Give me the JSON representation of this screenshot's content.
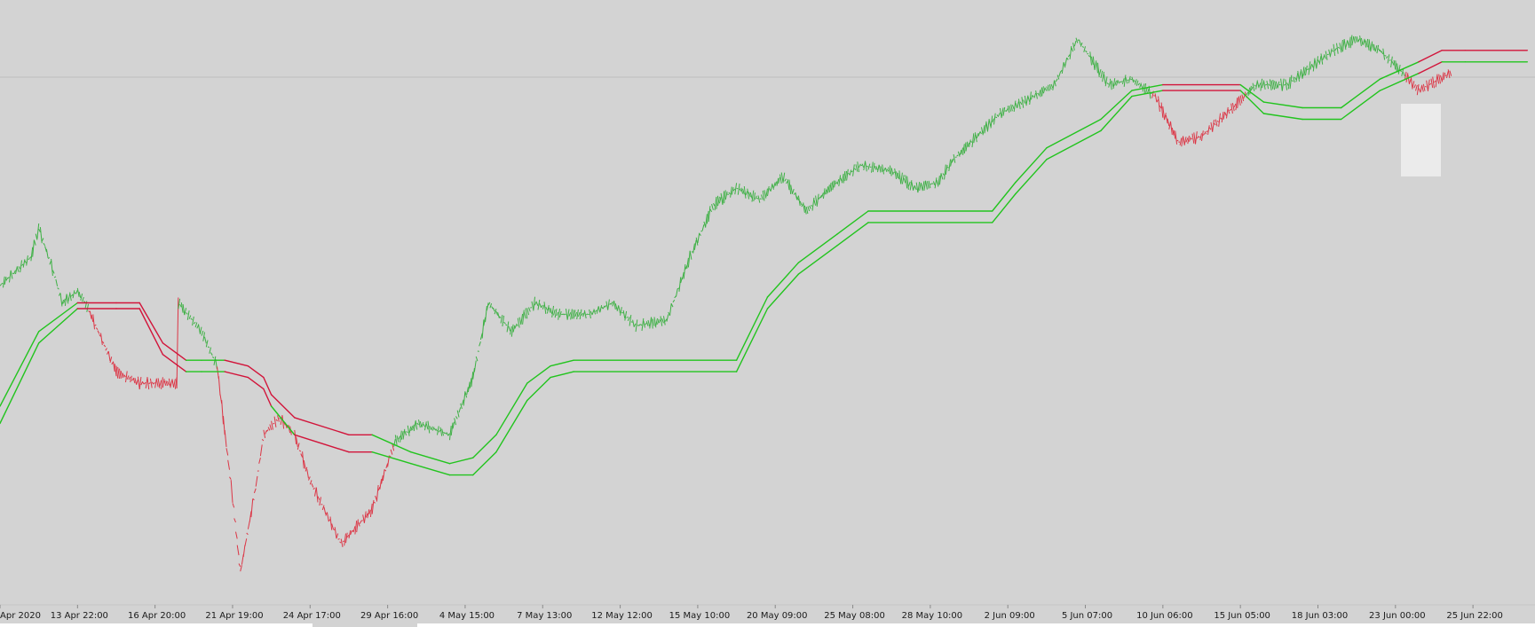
{
  "chart_data": {
    "type": "line",
    "title": "",
    "xlabel": "",
    "ylabel": "",
    "grid": false,
    "legend": "none",
    "x_ticks": [
      "Apr 2020",
      "13 Apr 22:00",
      "16 Apr 20:00",
      "21 Apr 19:00",
      "24 Apr 17:00",
      "29 Apr 16:00",
      "4 May 15:00",
      "7 May 13:00",
      "12 May 12:00",
      "15 May 10:00",
      "20 May 09:00",
      "25 May 08:00",
      "28 May 10:00",
      "2 Jun 09:00",
      "5 Jun 07:00",
      "10 Jun 06:00",
      "15 Jun 05:00",
      "18 Jun 03:00",
      "23 Jun 00:00",
      "25 Jun 22:00"
    ],
    "x_range": [
      0,
      19.8
    ],
    "y_range": [
      0,
      100
    ],
    "colors": {
      "up": "#3cb043",
      "down": "#dc3545",
      "band_up": "#22c41e",
      "band_down": "#d2143a",
      "background": "#d3d3d3"
    },
    "series": [
      {
        "name": "",
        "role": "price",
        "points": [
          [
            0,
            53
          ],
          [
            0.4,
            58
          ],
          [
            0.5,
            63
          ],
          [
            0.7,
            55
          ],
          [
            0.8,
            50
          ],
          [
            1.0,
            52
          ],
          [
            1.1,
            50
          ],
          [
            1.3,
            44
          ],
          [
            1.5,
            38
          ],
          [
            1.8,
            36
          ],
          [
            2.1,
            36
          ],
          [
            2.3,
            36
          ],
          [
            2.3,
            50
          ],
          [
            2.6,
            45
          ],
          [
            2.8,
            39
          ],
          [
            3.0,
            16
          ],
          [
            3.1,
            3
          ],
          [
            3.3,
            18
          ],
          [
            3.4,
            27
          ],
          [
            3.6,
            30
          ],
          [
            3.8,
            27
          ],
          [
            4.0,
            19
          ],
          [
            4.4,
            8
          ],
          [
            4.8,
            14
          ],
          [
            5.1,
            26
          ],
          [
            5.4,
            29
          ],
          [
            5.8,
            27
          ],
          [
            6.1,
            37
          ],
          [
            6.3,
            50
          ],
          [
            6.6,
            45
          ],
          [
            6.9,
            50
          ],
          [
            7.2,
            48
          ],
          [
            7.6,
            48
          ],
          [
            7.9,
            50
          ],
          [
            8.2,
            46
          ],
          [
            8.6,
            47
          ],
          [
            8.9,
            58
          ],
          [
            9.2,
            67
          ],
          [
            9.5,
            70
          ],
          [
            9.8,
            68
          ],
          [
            10.1,
            72
          ],
          [
            10.4,
            66
          ],
          [
            10.7,
            70
          ],
          [
            11.1,
            74
          ],
          [
            11.5,
            73
          ],
          [
            11.8,
            70
          ],
          [
            12.1,
            71
          ],
          [
            12.3,
            75
          ],
          [
            12.6,
            79
          ],
          [
            12.9,
            83
          ],
          [
            13.2,
            85
          ],
          [
            13.6,
            88
          ],
          [
            13.9,
            96
          ],
          [
            14.3,
            88
          ],
          [
            14.6,
            89
          ],
          [
            14.9,
            86
          ],
          [
            15.2,
            78
          ],
          [
            15.5,
            79
          ],
          [
            15.9,
            84
          ],
          [
            16.2,
            88
          ],
          [
            16.6,
            88
          ],
          [
            16.9,
            91
          ],
          [
            17.2,
            94
          ],
          [
            17.5,
            96
          ],
          [
            17.8,
            94
          ],
          [
            18.1,
            90
          ],
          [
            18.3,
            87
          ],
          [
            18.7,
            90
          ]
        ]
      },
      {
        "name": "",
        "role": "band-upper",
        "points": [
          [
            0,
            32
          ],
          [
            0.5,
            45
          ],
          [
            1,
            50
          ],
          [
            1.5,
            50
          ],
          [
            1.8,
            50
          ],
          [
            2.1,
            43
          ],
          [
            2.4,
            40
          ],
          [
            2.6,
            40
          ],
          [
            2.9,
            40
          ],
          [
            3.2,
            39
          ],
          [
            3.4,
            37
          ],
          [
            3.5,
            34
          ],
          [
            3.8,
            30
          ],
          [
            4.5,
            27
          ],
          [
            4.8,
            27
          ],
          [
            5.3,
            24
          ],
          [
            5.8,
            22
          ],
          [
            6.1,
            23
          ],
          [
            6.4,
            27
          ],
          [
            6.8,
            36
          ],
          [
            7.1,
            39
          ],
          [
            7.4,
            40
          ],
          [
            9.5,
            40
          ],
          [
            9.9,
            51
          ],
          [
            10.3,
            57
          ],
          [
            10.8,
            62
          ],
          [
            11.2,
            66
          ],
          [
            12.8,
            66
          ],
          [
            13.1,
            71
          ],
          [
            13.5,
            77
          ],
          [
            14.2,
            82
          ],
          [
            14.6,
            87
          ],
          [
            15.0,
            88
          ],
          [
            16.0,
            88
          ],
          [
            16.3,
            85
          ],
          [
            16.8,
            84
          ],
          [
            17.3,
            84
          ],
          [
            17.8,
            89
          ],
          [
            18.3,
            92
          ],
          [
            18.6,
            94
          ],
          [
            18.9,
            94
          ],
          [
            19.7,
            94
          ]
        ]
      },
      {
        "name": "",
        "role": "band-lower",
        "points": [
          [
            0,
            29
          ],
          [
            0.5,
            43
          ],
          [
            1,
            49
          ],
          [
            1.5,
            49
          ],
          [
            1.8,
            49
          ],
          [
            2.1,
            41
          ],
          [
            2.4,
            38
          ],
          [
            2.6,
            38
          ],
          [
            2.9,
            38
          ],
          [
            3.2,
            37
          ],
          [
            3.4,
            35
          ],
          [
            3.5,
            32
          ],
          [
            3.8,
            27
          ],
          [
            4.5,
            24
          ],
          [
            4.8,
            24
          ],
          [
            5.3,
            22
          ],
          [
            5.8,
            20
          ],
          [
            6.1,
            20
          ],
          [
            6.4,
            24
          ],
          [
            6.8,
            33
          ],
          [
            7.1,
            37
          ],
          [
            7.4,
            38
          ],
          [
            9.5,
            38
          ],
          [
            9.9,
            49
          ],
          [
            10.3,
            55
          ],
          [
            10.8,
            60
          ],
          [
            11.2,
            64
          ],
          [
            12.8,
            64
          ],
          [
            13.1,
            69
          ],
          [
            13.5,
            75
          ],
          [
            14.2,
            80
          ],
          [
            14.6,
            86
          ],
          [
            15.0,
            87
          ],
          [
            16.0,
            87
          ],
          [
            16.3,
            83
          ],
          [
            16.8,
            82
          ],
          [
            17.3,
            82
          ],
          [
            17.8,
            87
          ],
          [
            18.3,
            90
          ],
          [
            18.6,
            92
          ],
          [
            18.9,
            92
          ],
          [
            19.7,
            92
          ]
        ]
      }
    ]
  }
}
